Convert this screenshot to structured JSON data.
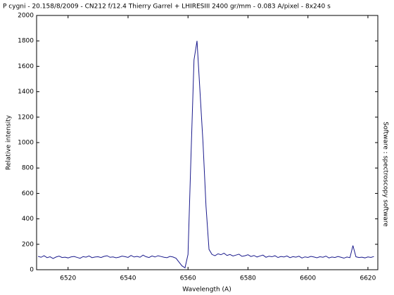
{
  "chart_data": {
    "type": "line",
    "title": "P cygni - 20.158/8/2009 - CN212 f/12.4 Thierry Garrel + LHIRESIII 2400 gr/mm - 0.083 A/pixel - 8x240 s",
    "x_label": "Wavelength (A)",
    "y_label": "Relative intensity",
    "side_note": "Software : spectroscopy software",
    "x": [
      6510,
      6511,
      6512,
      6513,
      6514,
      6515,
      6516,
      6517,
      6518,
      6519,
      6520,
      6521,
      6522,
      6523,
      6524,
      6525,
      6526,
      6527,
      6528,
      6529,
      6530,
      6531,
      6532,
      6533,
      6534,
      6535,
      6536,
      6537,
      6538,
      6539,
      6540,
      6541,
      6542,
      6543,
      6544,
      6545,
      6546,
      6547,
      6548,
      6549,
      6550,
      6551,
      6552,
      6553,
      6554,
      6555,
      6556,
      6557,
      6558,
      6559,
      6560,
      6561,
      6562,
      6563,
      6564,
      6565,
      6566,
      6567,
      6568,
      6569,
      6570,
      6571,
      6572,
      6573,
      6574,
      6575,
      6576,
      6577,
      6578,
      6579,
      6580,
      6581,
      6582,
      6583,
      6584,
      6585,
      6586,
      6587,
      6588,
      6589,
      6590,
      6591,
      6592,
      6593,
      6594,
      6595,
      6596,
      6597,
      6598,
      6599,
      6600,
      6601,
      6602,
      6603,
      6604,
      6605,
      6606,
      6607,
      6608,
      6609,
      6610,
      6611,
      6612,
      6613,
      6614,
      6615,
      6616,
      6617,
      6618,
      6619,
      6620,
      6621,
      6622
    ],
    "series": [
      {
        "name": "P cygni",
        "color": "#1a1a8c",
        "values": [
          105,
          98,
          110,
          95,
          102,
          88,
          100,
          107,
          96,
          99,
          93,
          101,
          104,
          97,
          90,
          103,
          99,
          108,
          95,
          100,
          102,
          96,
          105,
          110,
          98,
          101,
          94,
          99,
          107,
          103,
          97,
          112,
          100,
          105,
          98,
          115,
          102,
          96,
          108,
          100,
          110,
          104,
          98,
          95,
          105,
          100,
          90,
          60,
          30,
          15,
          120,
          900,
          1650,
          1800,
          1400,
          1000,
          500,
          160,
          120,
          110,
          125,
          118,
          130,
          112,
          120,
          108,
          115,
          122,
          105,
          110,
          118,
          104,
          112,
          100,
          108,
          115,
          98,
          106,
          102,
          110,
          96,
          104,
          100,
          108,
          95,
          103,
          99,
          106,
          92,
          101,
          97,
          105,
          100,
          94,
          102,
          98,
          107,
          93,
          100,
          96,
          104,
          98,
          91,
          100,
          95,
          190,
          102,
          96,
          99,
          93,
          101,
          97,
          104
        ]
      }
    ],
    "xlim": [
      6509.5,
      6623.3
    ],
    "ylim": [
      0,
      2000
    ],
    "xticks": [
      6520,
      6540,
      6560,
      6580,
      6600,
      6620
    ],
    "yticks": [
      0,
      200,
      400,
      600,
      800,
      1000,
      1200,
      1400,
      1600,
      1800,
      2000
    ]
  }
}
